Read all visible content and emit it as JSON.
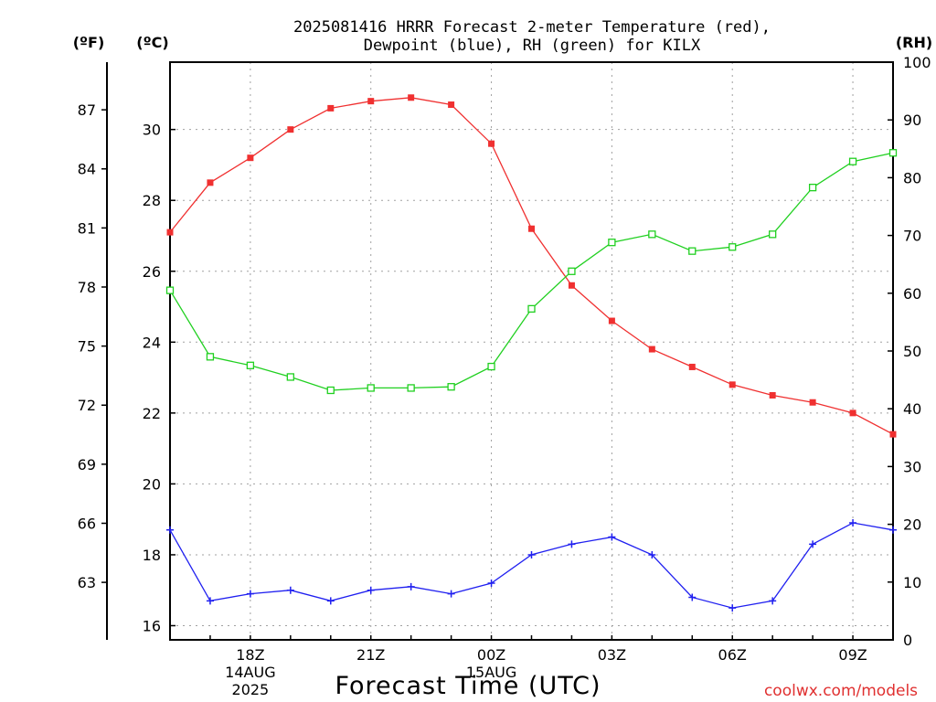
{
  "title_line1": "2025081416 HRRR Forecast 2-meter Temperature (red),",
  "title_line2": "Dewpoint (blue), RH (green) for KILX",
  "unit_f": "(ºF)",
  "unit_c": "(ºC)",
  "unit_rh": "(RH)",
  "xlabel": "Forecast Time (UTC)",
  "watermark": "coolwx.com/models",
  "colors": {
    "temperature": "#f03030",
    "dewpoint": "#2020f0",
    "rh": "#20d020",
    "grid": "#a0a0a0",
    "watermark": "#e03030"
  },
  "chart_data": {
    "type": "line",
    "x": [
      "16Z",
      "17Z",
      "18Z",
      "19Z",
      "20Z",
      "21Z",
      "22Z",
      "23Z",
      "00Z",
      "01Z",
      "02Z",
      "03Z",
      "04Z",
      "05Z",
      "06Z",
      "07Z",
      "08Z",
      "09Z",
      "10Z"
    ],
    "x_ticks": [
      {
        "label": "18Z",
        "date": "14AUG",
        "year": "2025"
      },
      {
        "label": "21Z"
      },
      {
        "label": "00Z",
        "date": "15AUG"
      },
      {
        "label": "03Z"
      },
      {
        "label": "06Z"
      },
      {
        "label": "09Z"
      }
    ],
    "celsius_ticks": [
      "16",
      "18",
      "20",
      "22",
      "24",
      "26",
      "28",
      "30"
    ],
    "fahrenheit_ticks": [
      "63",
      "66",
      "69",
      "72",
      "75",
      "78",
      "81",
      "84",
      "87"
    ],
    "rh_ticks": [
      "0",
      "10",
      "20",
      "30",
      "40",
      "50",
      "60",
      "70",
      "80",
      "90",
      "100"
    ],
    "ylim_celsius": [
      15.6,
      31.9
    ],
    "ylim_rh": [
      0,
      100
    ],
    "grid": true,
    "series": [
      {
        "name": "Temperature",
        "axis": "celsius",
        "marker": "filled-square",
        "values": [
          27.1,
          28.5,
          29.2,
          30.0,
          30.6,
          30.8,
          30.9,
          30.7,
          29.6,
          27.2,
          25.6,
          24.6,
          23.8,
          23.3,
          22.8,
          22.5,
          22.3,
          22.0,
          21.4
        ]
      },
      {
        "name": "Dewpoint",
        "axis": "celsius",
        "marker": "plus",
        "values": [
          18.7,
          16.7,
          16.9,
          17.0,
          16.7,
          17.0,
          17.1,
          16.9,
          17.2,
          18.0,
          18.3,
          18.5,
          18.0,
          16.8,
          16.5,
          16.7,
          18.3,
          18.9,
          18.7
        ]
      },
      {
        "name": "RH",
        "axis": "rh",
        "marker": "open-square",
        "values": [
          60.5,
          49.0,
          47.5,
          45.5,
          43.2,
          43.6,
          43.6,
          43.8,
          47.3,
          57.3,
          63.8,
          68.8,
          70.2,
          67.3,
          68.0,
          70.2,
          78.3,
          82.8,
          84.3
        ]
      }
    ]
  }
}
